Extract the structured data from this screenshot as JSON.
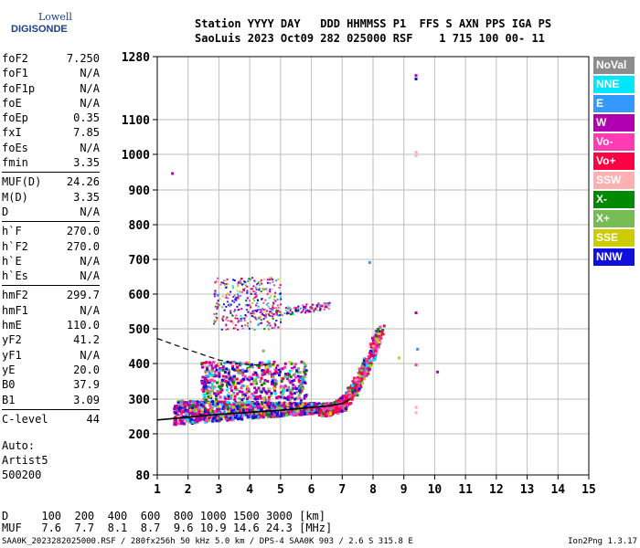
{
  "logo": {
    "top": "Lowell",
    "main": "DIGISONDE"
  },
  "header": {
    "line1": "Station YYYY DAY   DDD HHMMSS P1  FFS S AXN PPS IGA PS",
    "line2": "SaoLuis 2023 Oct09 282 025000 RSF    1 715 100 00- 11"
  },
  "params": [
    {
      "label": "foF2",
      "value": "7.250"
    },
    {
      "label": "foF1",
      "value": "N/A"
    },
    {
      "label": "foF1p",
      "value": "N/A"
    },
    {
      "label": "foE",
      "value": "N/A"
    },
    {
      "label": "foEp",
      "value": "0.35"
    },
    {
      "label": "fxI",
      "value": "7.85"
    },
    {
      "label": "foEs",
      "value": "N/A"
    },
    {
      "label": "fmin",
      "value": "3.35"
    },
    {
      "label": "MUF(D)",
      "value": "24.26",
      "divider": true
    },
    {
      "label": "M(D)",
      "value": "3.35"
    },
    {
      "label": "D",
      "value": "N/A"
    },
    {
      "label": "h`F",
      "value": "270.0",
      "divider": true
    },
    {
      "label": "h`F2",
      "value": "270.0"
    },
    {
      "label": "h`E",
      "value": "N/A"
    },
    {
      "label": "h`Es",
      "value": "N/A"
    },
    {
      "label": "hmF2",
      "value": "299.7",
      "divider": true
    },
    {
      "label": "hmF1",
      "value": "N/A"
    },
    {
      "label": "hmE",
      "value": "110.0"
    },
    {
      "label": "yF2",
      "value": "41.2"
    },
    {
      "label": "yF1",
      "value": "N/A"
    },
    {
      "label": "yE",
      "value": "20.0"
    },
    {
      "label": "B0",
      "value": "37.9"
    },
    {
      "label": "B1",
      "value": "3.09"
    },
    {
      "label": "C-level",
      "value": "44",
      "divider": true
    }
  ],
  "auto": {
    "line1": "Auto:",
    "line2": "Artist5",
    "line3": "500200"
  },
  "legend": [
    {
      "label": "NoVal",
      "color": "#8c8c8c"
    },
    {
      "label": "NNE",
      "color": "#00e6ff"
    },
    {
      "label": "E",
      "color": "#3399ff"
    },
    {
      "label": "W",
      "color": "#b000b0"
    },
    {
      "label": "Vo-",
      "color": "#ff3cb4"
    },
    {
      "label": "Vo+",
      "color": "#ff0044"
    },
    {
      "label": "SSW",
      "color": "#ffb0b0"
    },
    {
      "label": "X-",
      "color": "#008a00"
    },
    {
      "label": "X+",
      "color": "#77bb55"
    },
    {
      "label": "SSE",
      "color": "#cccc00"
    },
    {
      "label": "NNW",
      "color": "#1010dd"
    }
  ],
  "bottom": {
    "line1": "D     100  200  400  600  800 1000 1500 3000 [km]",
    "line2": "MUF   7.6  7.7  8.1  8.7  9.6 10.9 14.6 24.3 [MHz]"
  },
  "footer": {
    "left": "SAA0K_2023282025000.RSF / 280fx256h 50 kHz 5.0 km / DPS-4 SAA0K 903 / 2.6 S 315.8 E",
    "right": "Ion2Png 1.3.17"
  },
  "chart_data": {
    "type": "scatter",
    "x_ticks": [
      "1",
      "2",
      "3",
      "4",
      "5",
      "6",
      "7",
      "8",
      "9",
      "10",
      "11",
      "12",
      "13",
      "14",
      "15"
    ],
    "y_ticks": [
      "80",
      "200",
      "300",
      "400",
      "500",
      "600",
      "700",
      "800",
      "900",
      "1000",
      "1100",
      "1280"
    ],
    "xlim": [
      1,
      15
    ],
    "ylim": [
      80,
      1280
    ],
    "grid": true,
    "o_trace": [
      [
        1.0,
        240
      ],
      [
        2.0,
        248
      ],
      [
        3.0,
        256
      ],
      [
        4.0,
        262
      ],
      [
        5.0,
        268
      ],
      [
        6.0,
        276
      ],
      [
        6.5,
        280
      ],
      [
        7.0,
        287
      ],
      [
        7.25,
        300
      ]
    ],
    "x_trace": [
      [
        1.0,
        472
      ],
      [
        2.0,
        440
      ],
      [
        3.0,
        410
      ],
      [
        3.6,
        400
      ],
      [
        4.2,
        396
      ],
      [
        4.8,
        398
      ]
    ],
    "trace_clusters": [
      {
        "name": "o-trace",
        "x": [
          1.5,
          7.0
        ],
        "y": [
          225,
          310
        ]
      },
      {
        "name": "o-rise",
        "x": [
          6.5,
          8.3
        ],
        "y": [
          280,
          500
        ]
      },
      {
        "name": "spread-F",
        "x": [
          2.5,
          5.5
        ],
        "y": [
          300,
          420
        ]
      },
      {
        "name": "multi-hop",
        "x": [
          2.8,
          6.5
        ],
        "y": [
          510,
          660
        ]
      }
    ]
  }
}
